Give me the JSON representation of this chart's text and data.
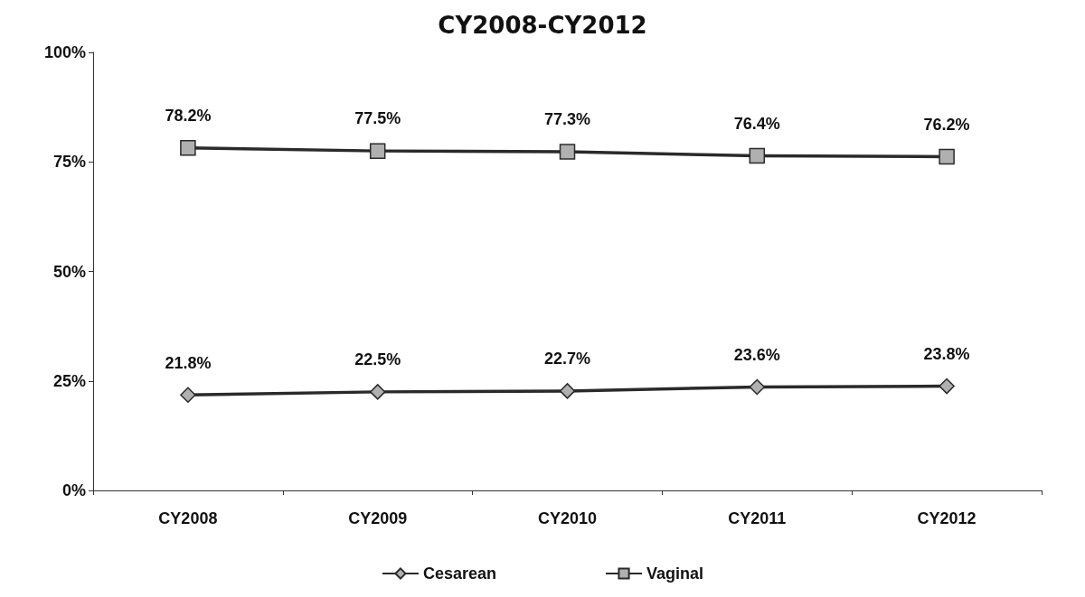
{
  "chart_data": {
    "type": "line",
    "title": "CY2008-CY2012",
    "categories": [
      "CY2008",
      "CY2009",
      "CY2010",
      "CY2011",
      "CY2012"
    ],
    "series": [
      {
        "name": "Cesarean",
        "color": "#2a2a2a",
        "marker": "diamond",
        "values": [
          21.8,
          22.5,
          22.7,
          23.6,
          23.8
        ],
        "value_labels": [
          "21.8%",
          "22.5%",
          "22.7%",
          "23.6%",
          "23.8%"
        ]
      },
      {
        "name": "Vaginal",
        "color": "#2a2a2a",
        "marker": "square",
        "values": [
          78.2,
          77.5,
          77.3,
          76.4,
          76.2
        ],
        "value_labels": [
          "78.2%",
          "77.5%",
          "77.3%",
          "76.4%",
          "76.2%"
        ]
      }
    ],
    "ylim": [
      0,
      100
    ],
    "yticks": [
      {
        "value": 0,
        "label": "0%"
      },
      {
        "value": 25,
        "label": "25%"
      },
      {
        "value": 50,
        "label": "50%"
      },
      {
        "value": 75,
        "label": "75%"
      },
      {
        "value": 100,
        "label": "100%"
      }
    ],
    "grid": false,
    "legend": "bottom",
    "line_style": "solid"
  }
}
